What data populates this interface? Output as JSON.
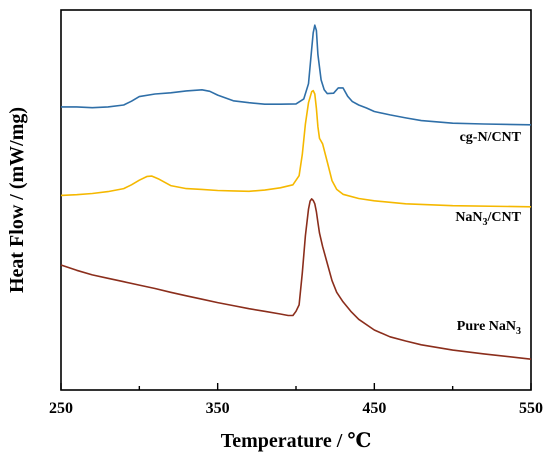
{
  "chart_data": {
    "type": "line",
    "title": "",
    "xlabel": "Temperature / ℃",
    "ylabel": "Heat Flow / (mW/mg)",
    "xlim": [
      250,
      550
    ],
    "xticks": [
      "250",
      "350",
      "450",
      "550"
    ],
    "y_ticks_shown": false,
    "y_units": "arbitrary offset (0 = bottom axis, 100 = top of plot)",
    "grid": false,
    "legend": "inline labels right of each curve",
    "series": [
      {
        "name": "cg-N/CNT",
        "color": "#2f6fa8",
        "label_parts": [
          "cg-N/CNT"
        ],
        "points": [
          [
            250,
            74.5
          ],
          [
            260,
            74.5
          ],
          [
            270,
            74.3
          ],
          [
            280,
            74.5
          ],
          [
            290,
            75.0
          ],
          [
            295,
            76.0
          ],
          [
            300,
            77.2
          ],
          [
            310,
            77.9
          ],
          [
            320,
            78.2
          ],
          [
            330,
            78.7
          ],
          [
            340,
            79.0
          ],
          [
            345,
            78.6
          ],
          [
            350,
            77.6
          ],
          [
            360,
            76.1
          ],
          [
            370,
            75.6
          ],
          [
            380,
            75.2
          ],
          [
            390,
            75.2
          ],
          [
            400,
            75.3
          ],
          [
            405,
            76.6
          ],
          [
            408,
            80.6
          ],
          [
            410,
            89.8
          ],
          [
            411,
            94.0
          ],
          [
            412,
            96.0
          ],
          [
            413,
            94.6
          ],
          [
            414,
            88.3
          ],
          [
            416,
            81.6
          ],
          [
            418,
            79.0
          ],
          [
            420,
            78.0
          ],
          [
            424,
            78.1
          ],
          [
            427,
            79.5
          ],
          [
            430,
            79.5
          ],
          [
            433,
            77.3
          ],
          [
            436,
            75.9
          ],
          [
            440,
            75.0
          ],
          [
            445,
            74.2
          ],
          [
            450,
            73.3
          ],
          [
            460,
            72.4
          ],
          [
            470,
            71.6
          ],
          [
            480,
            70.9
          ],
          [
            500,
            70.2
          ],
          [
            520,
            70.0
          ],
          [
            550,
            69.8
          ]
        ]
      },
      {
        "name": "NaN3/CNT",
        "color": "#f5b800",
        "label_parts": [
          "NaN",
          "3",
          "/CNT"
        ],
        "points": [
          [
            250,
            51.2
          ],
          [
            260,
            51.4
          ],
          [
            270,
            51.7
          ],
          [
            280,
            52.2
          ],
          [
            290,
            53.0
          ],
          [
            295,
            54.0
          ],
          [
            300,
            55.2
          ],
          [
            305,
            56.2
          ],
          [
            308,
            56.3
          ],
          [
            312,
            55.6
          ],
          [
            320,
            53.8
          ],
          [
            330,
            53.0
          ],
          [
            340,
            52.8
          ],
          [
            350,
            52.5
          ],
          [
            360,
            52.4
          ],
          [
            370,
            52.3
          ],
          [
            380,
            52.6
          ],
          [
            390,
            53.2
          ],
          [
            398,
            54.0
          ],
          [
            402,
            56.4
          ],
          [
            404,
            62.0
          ],
          [
            406,
            70.0
          ],
          [
            408,
            75.6
          ],
          [
            410,
            78.5
          ],
          [
            411,
            78.8
          ],
          [
            412,
            77.9
          ],
          [
            413,
            74.1
          ],
          [
            414,
            69.3
          ],
          [
            415,
            66.2
          ],
          [
            417,
            64.8
          ],
          [
            420,
            60.0
          ],
          [
            423,
            55.1
          ],
          [
            426,
            52.8
          ],
          [
            430,
            51.5
          ],
          [
            440,
            50.4
          ],
          [
            450,
            49.8
          ],
          [
            470,
            49.0
          ],
          [
            500,
            48.5
          ],
          [
            550,
            48.2
          ]
        ]
      },
      {
        "name": "Pure NaN3",
        "color": "#8b2e1c",
        "label_parts": [
          "Pure NaN",
          "3"
        ],
        "points": [
          [
            250,
            32.9
          ],
          [
            260,
            31.5
          ],
          [
            270,
            30.3
          ],
          [
            280,
            29.4
          ],
          [
            290,
            28.5
          ],
          [
            300,
            27.6
          ],
          [
            310,
            26.7
          ],
          [
            320,
            25.7
          ],
          [
            330,
            24.8
          ],
          [
            340,
            23.9
          ],
          [
            350,
            23.0
          ],
          [
            360,
            22.2
          ],
          [
            370,
            21.4
          ],
          [
            380,
            20.7
          ],
          [
            390,
            20.0
          ],
          [
            395,
            19.6
          ],
          [
            398,
            19.6
          ],
          [
            400,
            20.7
          ],
          [
            402,
            22.4
          ],
          [
            404,
            30.8
          ],
          [
            406,
            40.6
          ],
          [
            408,
            47.6
          ],
          [
            409,
            49.7
          ],
          [
            410,
            50.3
          ],
          [
            411,
            49.9
          ],
          [
            412,
            49.0
          ],
          [
            413,
            46.9
          ],
          [
            414,
            44.1
          ],
          [
            415,
            41.3
          ],
          [
            417,
            37.8
          ],
          [
            420,
            33.3
          ],
          [
            423,
            28.8
          ],
          [
            426,
            25.7
          ],
          [
            430,
            23.2
          ],
          [
            435,
            20.7
          ],
          [
            440,
            18.6
          ],
          [
            450,
            15.8
          ],
          [
            460,
            14.0
          ],
          [
            470,
            12.9
          ],
          [
            480,
            11.9
          ],
          [
            490,
            11.2
          ],
          [
            500,
            10.5
          ],
          [
            520,
            9.5
          ],
          [
            550,
            8.1
          ]
        ]
      }
    ]
  }
}
